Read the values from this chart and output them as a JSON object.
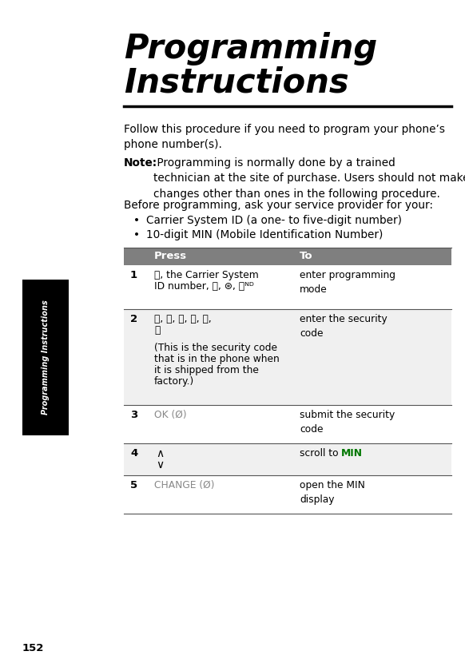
{
  "title_line1": "Programming",
  "title_line2": "Instructions",
  "bg_color": "#ffffff",
  "page_number": "152",
  "sidebar_text": "Programming Instructions",
  "sidebar_color": "#000000",
  "header_bar_color": "#7f7f7f",
  "row_divider_color": "#555555",
  "intro_text": "Follow this procedure if you need to program your phone’s\nphone number(s).",
  "note_bold": "Note:",
  "note_text": " Programming is normally done by a trained\ntechnician at the site of purchase. Users should not make\nchanges other than ones in the following procedure.",
  "before_text": "Before programming, ask your service provider for your:",
  "bullet1": "Carrier System ID (a one- to five-digit number)",
  "bullet2": "10-digit MIN (Mobile Identification Number)",
  "black_tab_color": "#000000",
  "title_color": "#000000",
  "text_color": "#000000",
  "gray_text_color": "#888888",
  "green_color": "#007700",
  "white_color": "#ffffff"
}
